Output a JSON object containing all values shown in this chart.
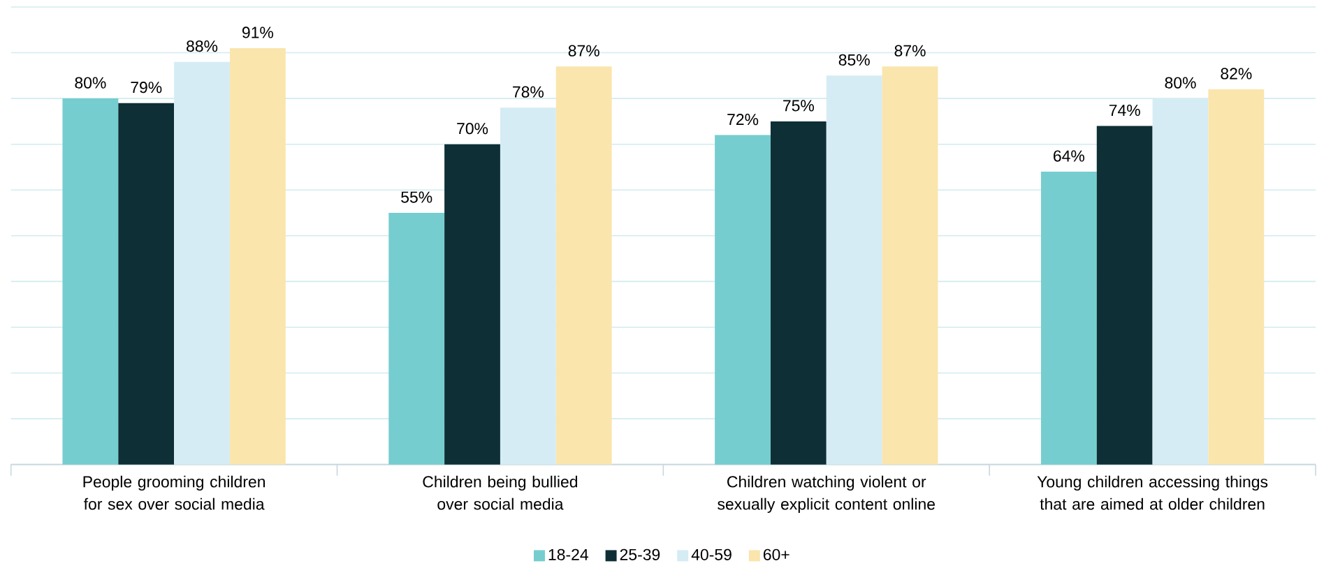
{
  "chart_data": {
    "type": "bar",
    "categories": [
      "People grooming children for sex over social media",
      "Children being bullied over social media",
      "Children watching violent or sexually explicit content online",
      "Young children accessing things that are aimed at older children"
    ],
    "series": [
      {
        "name": "18-24",
        "color": "#76cdcf",
        "values": [
          80,
          55,
          72,
          64
        ],
        "value_labels": [
          "80%",
          "55%",
          "72%",
          "64%"
        ]
      },
      {
        "name": "25-39",
        "color": "#0e2f36",
        "values": [
          79,
          70,
          75,
          74
        ],
        "value_labels": [
          "79%",
          "70%",
          "75%",
          "74%"
        ]
      },
      {
        "name": "40-59",
        "color": "#d5ecf4",
        "values": [
          88,
          78,
          85,
          80
        ],
        "value_labels": [
          "88%",
          "78%",
          "85%",
          "80%"
        ]
      },
      {
        "name": "60+",
        "color": "#fae5ad",
        "values": [
          91,
          87,
          87,
          82
        ],
        "value_labels": [
          "91%",
          "87%",
          "87%",
          "82%"
        ]
      }
    ],
    "ylim": [
      0,
      100
    ],
    "yticks": [
      {
        "value": 0,
        "label": null
      },
      {
        "value": 10,
        "label": null
      },
      {
        "value": 20,
        "label": null
      },
      {
        "value": 30,
        "label": null
      },
      {
        "value": 40,
        "label": null
      },
      {
        "value": 50,
        "label": null
      },
      {
        "value": 60,
        "label": null
      },
      {
        "value": 70,
        "label": null
      },
      {
        "value": 80,
        "label": null
      },
      {
        "value": 90,
        "label": null
      },
      {
        "value": 100,
        "label": null
      }
    ],
    "tick_labels": "x",
    "grid": "y",
    "legend": "bottom"
  }
}
